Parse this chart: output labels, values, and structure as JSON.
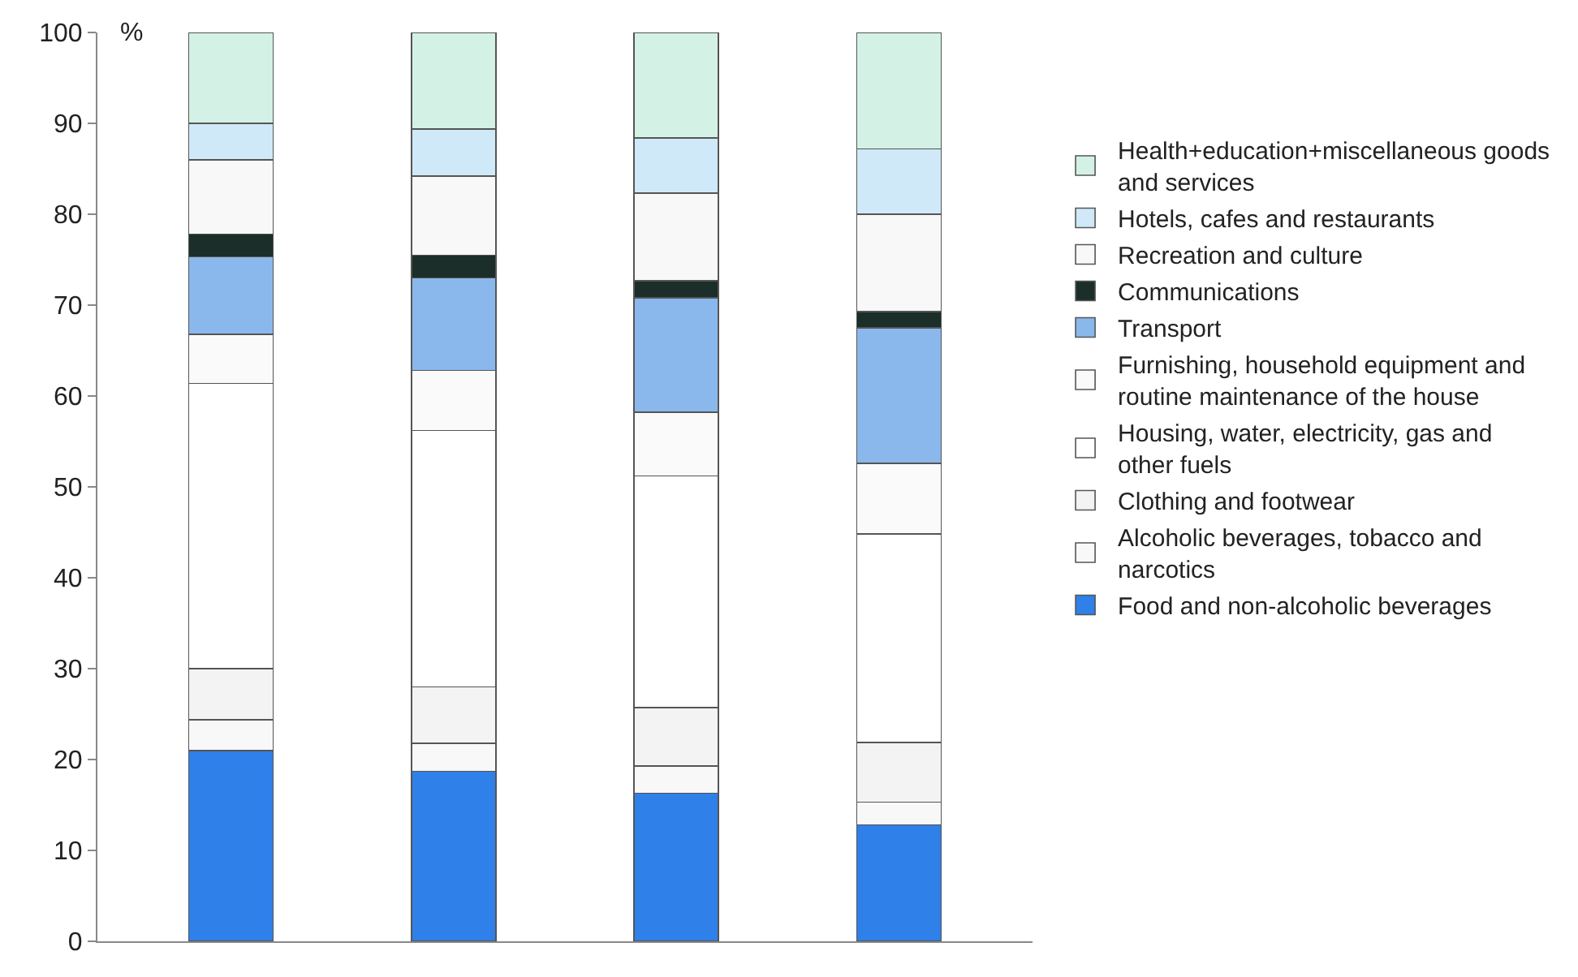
{
  "chart_data": {
    "type": "bar",
    "stacked": true,
    "ylabel": "%",
    "categories": [
      null,
      null,
      null,
      null
    ],
    "ylim": [
      0,
      100
    ],
    "yticks": [
      0,
      10,
      20,
      30,
      40,
      50,
      60,
      70,
      80,
      90,
      100
    ],
    "tick_labels": "y",
    "grid": false,
    "legend": "right",
    "series": [
      {
        "name": "Food and non-alcoholic beverages",
        "color": "#2f80e8",
        "values": [
          21.0,
          18.7,
          16.3,
          12.8
        ]
      },
      {
        "name": "Alcoholic beverages, tobacco and narcotics",
        "color": "#f8f8f8",
        "values": [
          3.4,
          3.1,
          3.0,
          2.5
        ]
      },
      {
        "name": "Clothing and footwear",
        "color": "#f3f3f3",
        "values": [
          5.6,
          6.2,
          6.4,
          6.6
        ]
      },
      {
        "name": "Housing, water, electricity, gas and other fuels",
        "color": "#ffffff",
        "values": [
          31.4,
          28.2,
          25.5,
          22.9
        ]
      },
      {
        "name": "Furnishing, household equipment and routine maintenance of the house",
        "color": "#fafafa",
        "values": [
          5.4,
          6.6,
          7.0,
          7.8
        ]
      },
      {
        "name": "Transport",
        "color": "#8ab8ec",
        "values": [
          8.5,
          10.2,
          12.6,
          14.9
        ]
      },
      {
        "name": "Communications",
        "color": "#1b2e2a",
        "values": [
          2.5,
          2.5,
          1.9,
          1.8
        ]
      },
      {
        "name": "Recreation and culture",
        "color": "#f8f8f8",
        "values": [
          8.2,
          8.7,
          9.6,
          10.7
        ]
      },
      {
        "name": "Hotels, cafes and restaurants",
        "color": "#cfe9f8",
        "values": [
          4.0,
          5.2,
          6.1,
          7.2
        ]
      },
      {
        "name": "Health+education+miscellaneous goods and services",
        "color": "#d4f1e6",
        "values": [
          10.0,
          10.6,
          11.6,
          12.8
        ]
      }
    ]
  }
}
